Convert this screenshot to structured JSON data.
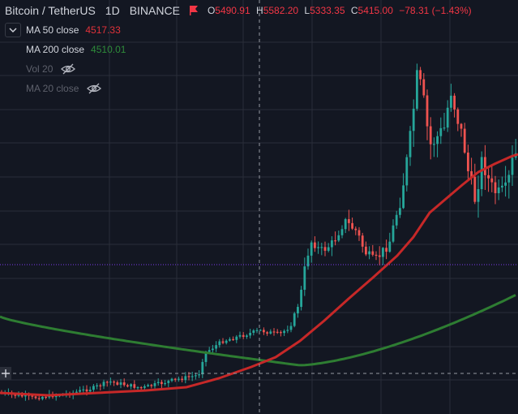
{
  "header": {
    "symbol": "Bitcoin / TetherUS",
    "interval": "1D",
    "exchange": "BINANCE",
    "ohlc": {
      "o_label": "O",
      "o": "5490.91",
      "h_label": "H",
      "h": "5582.20",
      "l_label": "L",
      "l": "5333.35",
      "c_label": "C",
      "c": "5415.00",
      "change": "−78.31 (−1.43%)"
    }
  },
  "indicators": [
    {
      "name": "MA 50 close",
      "value": "4517.33",
      "color": "#e0323a"
    },
    {
      "name": "MA 200 close",
      "value": "4510.01",
      "color": "#2e8b3a"
    },
    {
      "name": "Vol 20",
      "hidden": true
    },
    {
      "name": "MA 20 close",
      "hidden": true
    }
  ],
  "icons": {
    "collapse": "chevron-down-icon",
    "flag": "flag-icon",
    "hidden": "eye-crossed-icon",
    "add": "plus-icon"
  },
  "colors": {
    "background": "#131722",
    "grid": "#2a2e39",
    "up": "#26a69a",
    "down": "#ef5350",
    "ma50": "#c62828",
    "ma200": "#2e7d32",
    "price_line": "#7c3aed",
    "crosshair": "#9598a1"
  },
  "chart_data": {
    "type": "candlestick",
    "title": "Bitcoin / TetherUS",
    "series": [
      {
        "name": "MA 50 close",
        "style": "line",
        "color": "#c62828"
      },
      {
        "name": "MA 200 close",
        "style": "line",
        "color": "#2e7d32"
      }
    ],
    "candle_count": 150,
    "latest_close": 5415.0
  }
}
